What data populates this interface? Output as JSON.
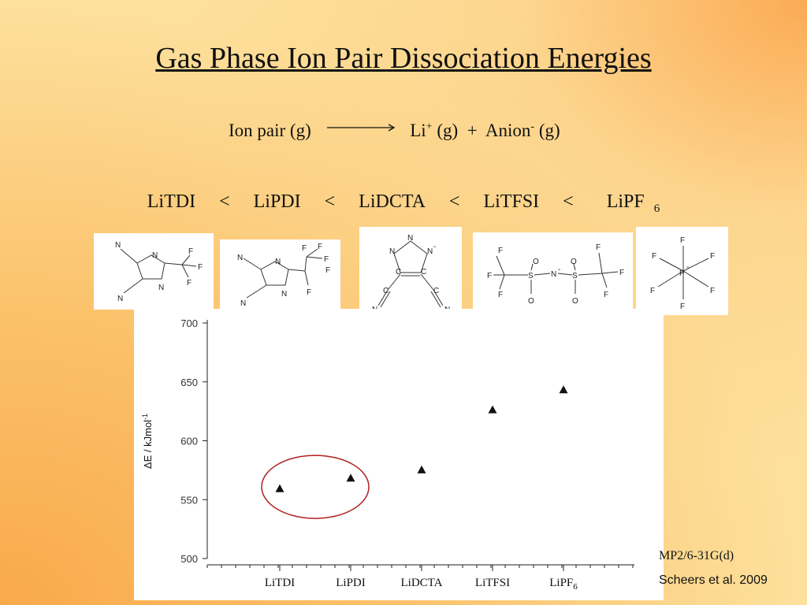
{
  "slide": {
    "title": "Gas Phase Ion Pair Dissociation Energies",
    "reaction": {
      "reactant": "Ion pair (g)",
      "product1": "Li",
      "product1_charge": "+",
      "product1_state": "(g)",
      "plus": "+",
      "product2": "Anion",
      "product2_charge": "-",
      "product2_state": "(g)"
    },
    "ordering": {
      "items": [
        "LiTDI",
        "LiPDI",
        "LiDCTA",
        "LiTFSI",
        "LiPF"
      ],
      "last_subscript": "6",
      "separator": "<"
    },
    "method": "MP2/6-31G(d)",
    "citation": "Scheers et al. 2009",
    "structures": {
      "tdi": {
        "atoms": [
          "N",
          "N",
          "N",
          "N",
          "F",
          "F",
          "F"
        ]
      },
      "pdi": {
        "atoms": [
          "N",
          "N",
          "N",
          "N",
          "F",
          "F",
          "F",
          "F",
          "F"
        ]
      },
      "dcta": {
        "atoms": [
          "N",
          "N",
          "N",
          "-",
          "C",
          "C",
          "C",
          "C",
          "N",
          "N"
        ]
      },
      "tfsi": {
        "atoms": [
          "F",
          "F",
          "F",
          "S",
          "O",
          "O",
          "N",
          "-",
          "S",
          "O",
          "O",
          "F",
          "F",
          "F"
        ]
      },
      "pf6": {
        "atoms": [
          "F",
          "F",
          "F",
          "P",
          "-",
          "F",
          "F",
          "F"
        ]
      }
    }
  },
  "chart_data": {
    "type": "scatter",
    "marker": "triangle",
    "categories": [
      "LiTDI",
      "LiPDI",
      "LiDCTA",
      "LiTFSI",
      "LiPF"
    ],
    "last_category_subscript": "6",
    "values": [
      559,
      568,
      575,
      626,
      643
    ],
    "ylabel": "ΔE / kJmol",
    "ylabel_superscript": "-1",
    "ylim": [
      500,
      700
    ],
    "yticks": [
      500,
      550,
      600,
      650,
      700
    ],
    "highlight": {
      "categories": [
        "LiTDI",
        "LiPDI"
      ],
      "shape": "ellipse",
      "color": "#b02020"
    }
  }
}
